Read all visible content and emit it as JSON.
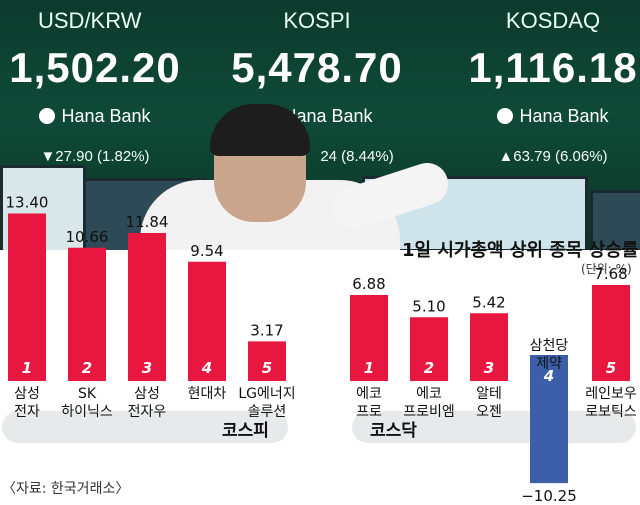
{
  "boards": [
    {
      "label": "USD/KRW",
      "value": "1,502.20",
      "brand": "Hana Bank",
      "change": "▼27.90 (1.82%)"
    },
    {
      "label": "KOSPI",
      "value": "5,478.70",
      "brand": "Hana Bank",
      "change": "24 (8.44%)"
    },
    {
      "label": "KOSDAQ",
      "value": "1,116.18",
      "brand": "Hana Bank",
      "change": "▲63.79 (6.06%)"
    }
  ],
  "colors": {
    "bar_positive": "#e8173f",
    "bar_negative": "#3d5faa",
    "pill": "#e8e9eb"
  },
  "chart_title": "1일 시가총액 상위 종목 상승률",
  "unit_label": "(단위: %)",
  "market_labels": [
    "코스피",
    "코스닥"
  ],
  "source": "〈자료: 한국거래소〉",
  "chart_data": [
    {
      "type": "bar",
      "market": "코스피",
      "categories": [
        "삼성\n전자",
        "SK\n하이닉스",
        "삼성\n전자우",
        "현대차",
        "LG에너지\n솔루션"
      ],
      "ranks": [
        "1",
        "2",
        "3",
        "4",
        "5"
      ],
      "values": [
        13.4,
        10.66,
        11.84,
        9.54,
        3.17
      ],
      "value_labels": [
        "13.40",
        "10.66",
        "11.84",
        "9.54",
        "3.17"
      ]
    },
    {
      "type": "bar",
      "market": "코스닥",
      "categories": [
        "에코\n프로",
        "에코\n프로비엠",
        "알테\n오젠",
        "삼천당\n제약",
        "레인보우\n로보틱스"
      ],
      "ranks": [
        "1",
        "2",
        "3",
        "4",
        "5"
      ],
      "values": [
        6.88,
        5.1,
        5.42,
        -10.25,
        7.68
      ],
      "value_labels": [
        "6.88",
        "5.10",
        "5.42",
        "−10.25",
        "7.68"
      ]
    }
  ]
}
